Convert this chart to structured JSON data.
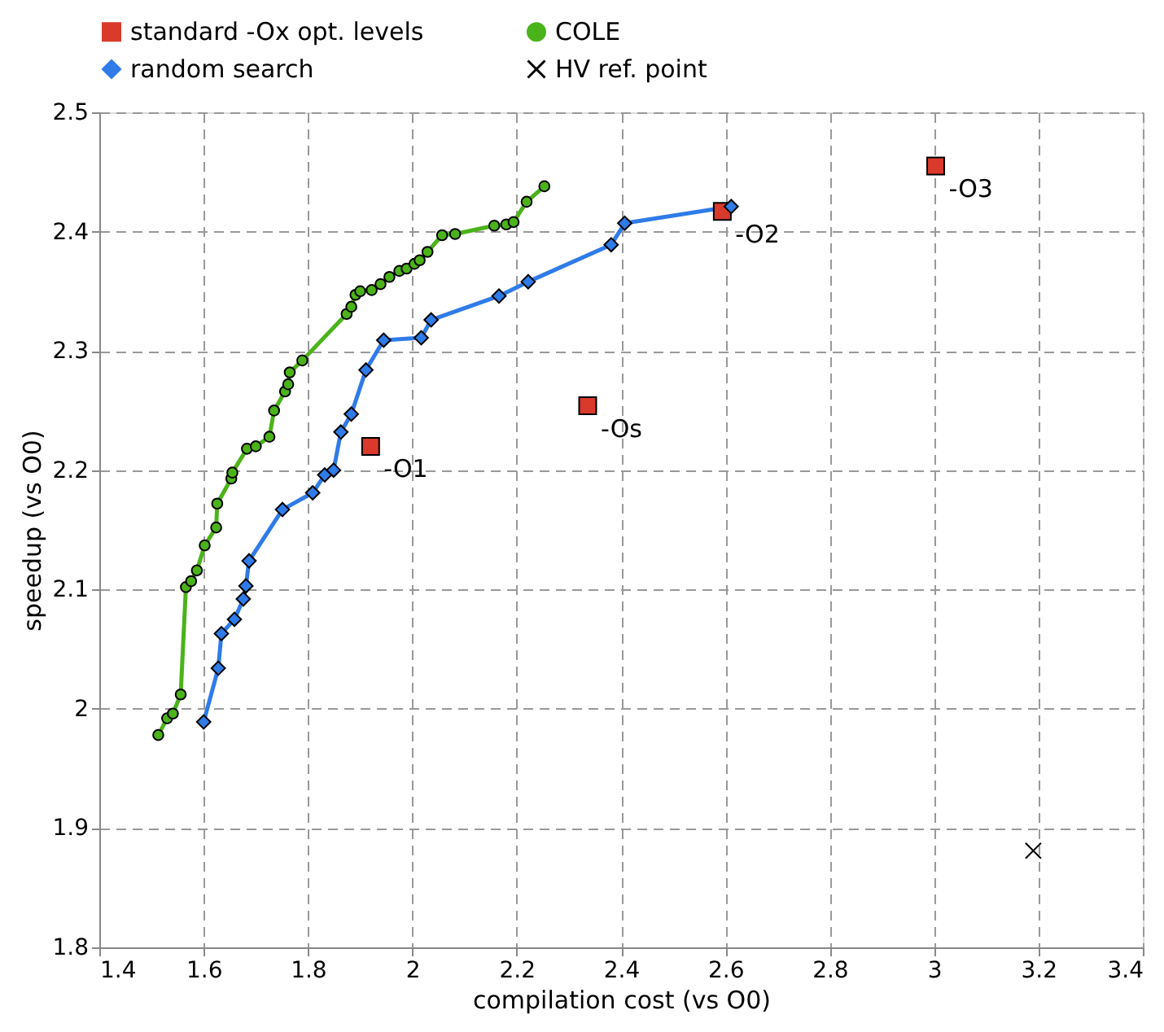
{
  "chart_data": {
    "type": "line",
    "xlabel": "compilation cost (vs O0)",
    "ylabel": "speedup (vs O0)",
    "xlim": [
      1.4,
      3.4
    ],
    "xticks": [
      1.4,
      1.6,
      1.8,
      2,
      2.2,
      2.4,
      2.6,
      2.8,
      3,
      3.2,
      3.4
    ],
    "ylim": [
      1.8,
      2.5
    ],
    "yticks": [
      1.8,
      1.9,
      2,
      2.1,
      2.2,
      2.3,
      2.4,
      2.5
    ],
    "grid": true,
    "legend": "top",
    "line_style": "solid",
    "series": [
      {
        "name": "standard -Ox opt. levels",
        "type": "scatter",
        "marker": "square",
        "color": "#d93a2b",
        "x": [
          1.92,
          2.336,
          2.594,
          3.003
        ],
        "values": [
          2.22,
          2.254,
          2.417,
          2.455
        ]
      },
      {
        "name": "COLE",
        "type": "line",
        "marker": "circle",
        "color": "#4bb31a",
        "x": [
          1.513,
          1.53,
          1.541,
          1.556,
          1.566,
          1.576,
          1.587,
          1.602,
          1.624,
          1.626,
          1.653,
          1.655,
          1.683,
          1.7,
          1.726,
          1.735,
          1.756,
          1.762,
          1.765,
          1.789,
          1.874,
          1.883,
          1.891,
          1.9,
          1.922,
          1.939,
          1.956,
          1.975,
          1.989,
          2.004,
          2.014,
          2.029,
          2.057,
          2.082,
          2.157,
          2.18,
          2.194,
          2.219,
          2.253
        ],
        "values": [
          1.978,
          1.992,
          1.996,
          2.012,
          2.102,
          2.107,
          2.116,
          2.137,
          2.152,
          2.172,
          2.193,
          2.198,
          2.218,
          2.22,
          2.228,
          2.25,
          2.266,
          2.272,
          2.282,
          2.292,
          2.331,
          2.337,
          2.347,
          2.35,
          2.351,
          2.356,
          2.362,
          2.367,
          2.369,
          2.373,
          2.376,
          2.383,
          2.397,
          2.398,
          2.405,
          2.406,
          2.408,
          2.425,
          2.438
        ]
      },
      {
        "name": "random search",
        "type": "line",
        "marker": "diamond",
        "color": "#2f7be8",
        "x": [
          1.6,
          1.628,
          1.634,
          1.659,
          1.676,
          1.681,
          1.687,
          1.751,
          1.809,
          1.832,
          1.849,
          1.863,
          1.883,
          1.911,
          1.945,
          2.017,
          2.036,
          2.166,
          2.222,
          2.381,
          2.407,
          2.611
        ],
        "values": [
          1.989,
          2.034,
          2.063,
          2.075,
          2.092,
          2.103,
          2.124,
          2.167,
          2.181,
          2.196,
          2.2,
          2.232,
          2.247,
          2.284,
          2.309,
          2.311,
          2.326,
          2.346,
          2.358,
          2.389,
          2.407,
          2.421
        ]
      },
      {
        "name": "HV ref. point",
        "type": "scatter",
        "marker": "cross",
        "color": "#000000",
        "x": [
          3.19
        ],
        "values": [
          1.881
        ]
      }
    ],
    "annotations": [
      {
        "text": "-O1",
        "x": 1.92,
        "y": 2.22
      },
      {
        "text": "-Os",
        "x": 2.336,
        "y": 2.254
      },
      {
        "text": "-O2",
        "x": 2.594,
        "y": 2.417
      },
      {
        "text": "-O3",
        "x": 3.003,
        "y": 2.455
      }
    ]
  }
}
